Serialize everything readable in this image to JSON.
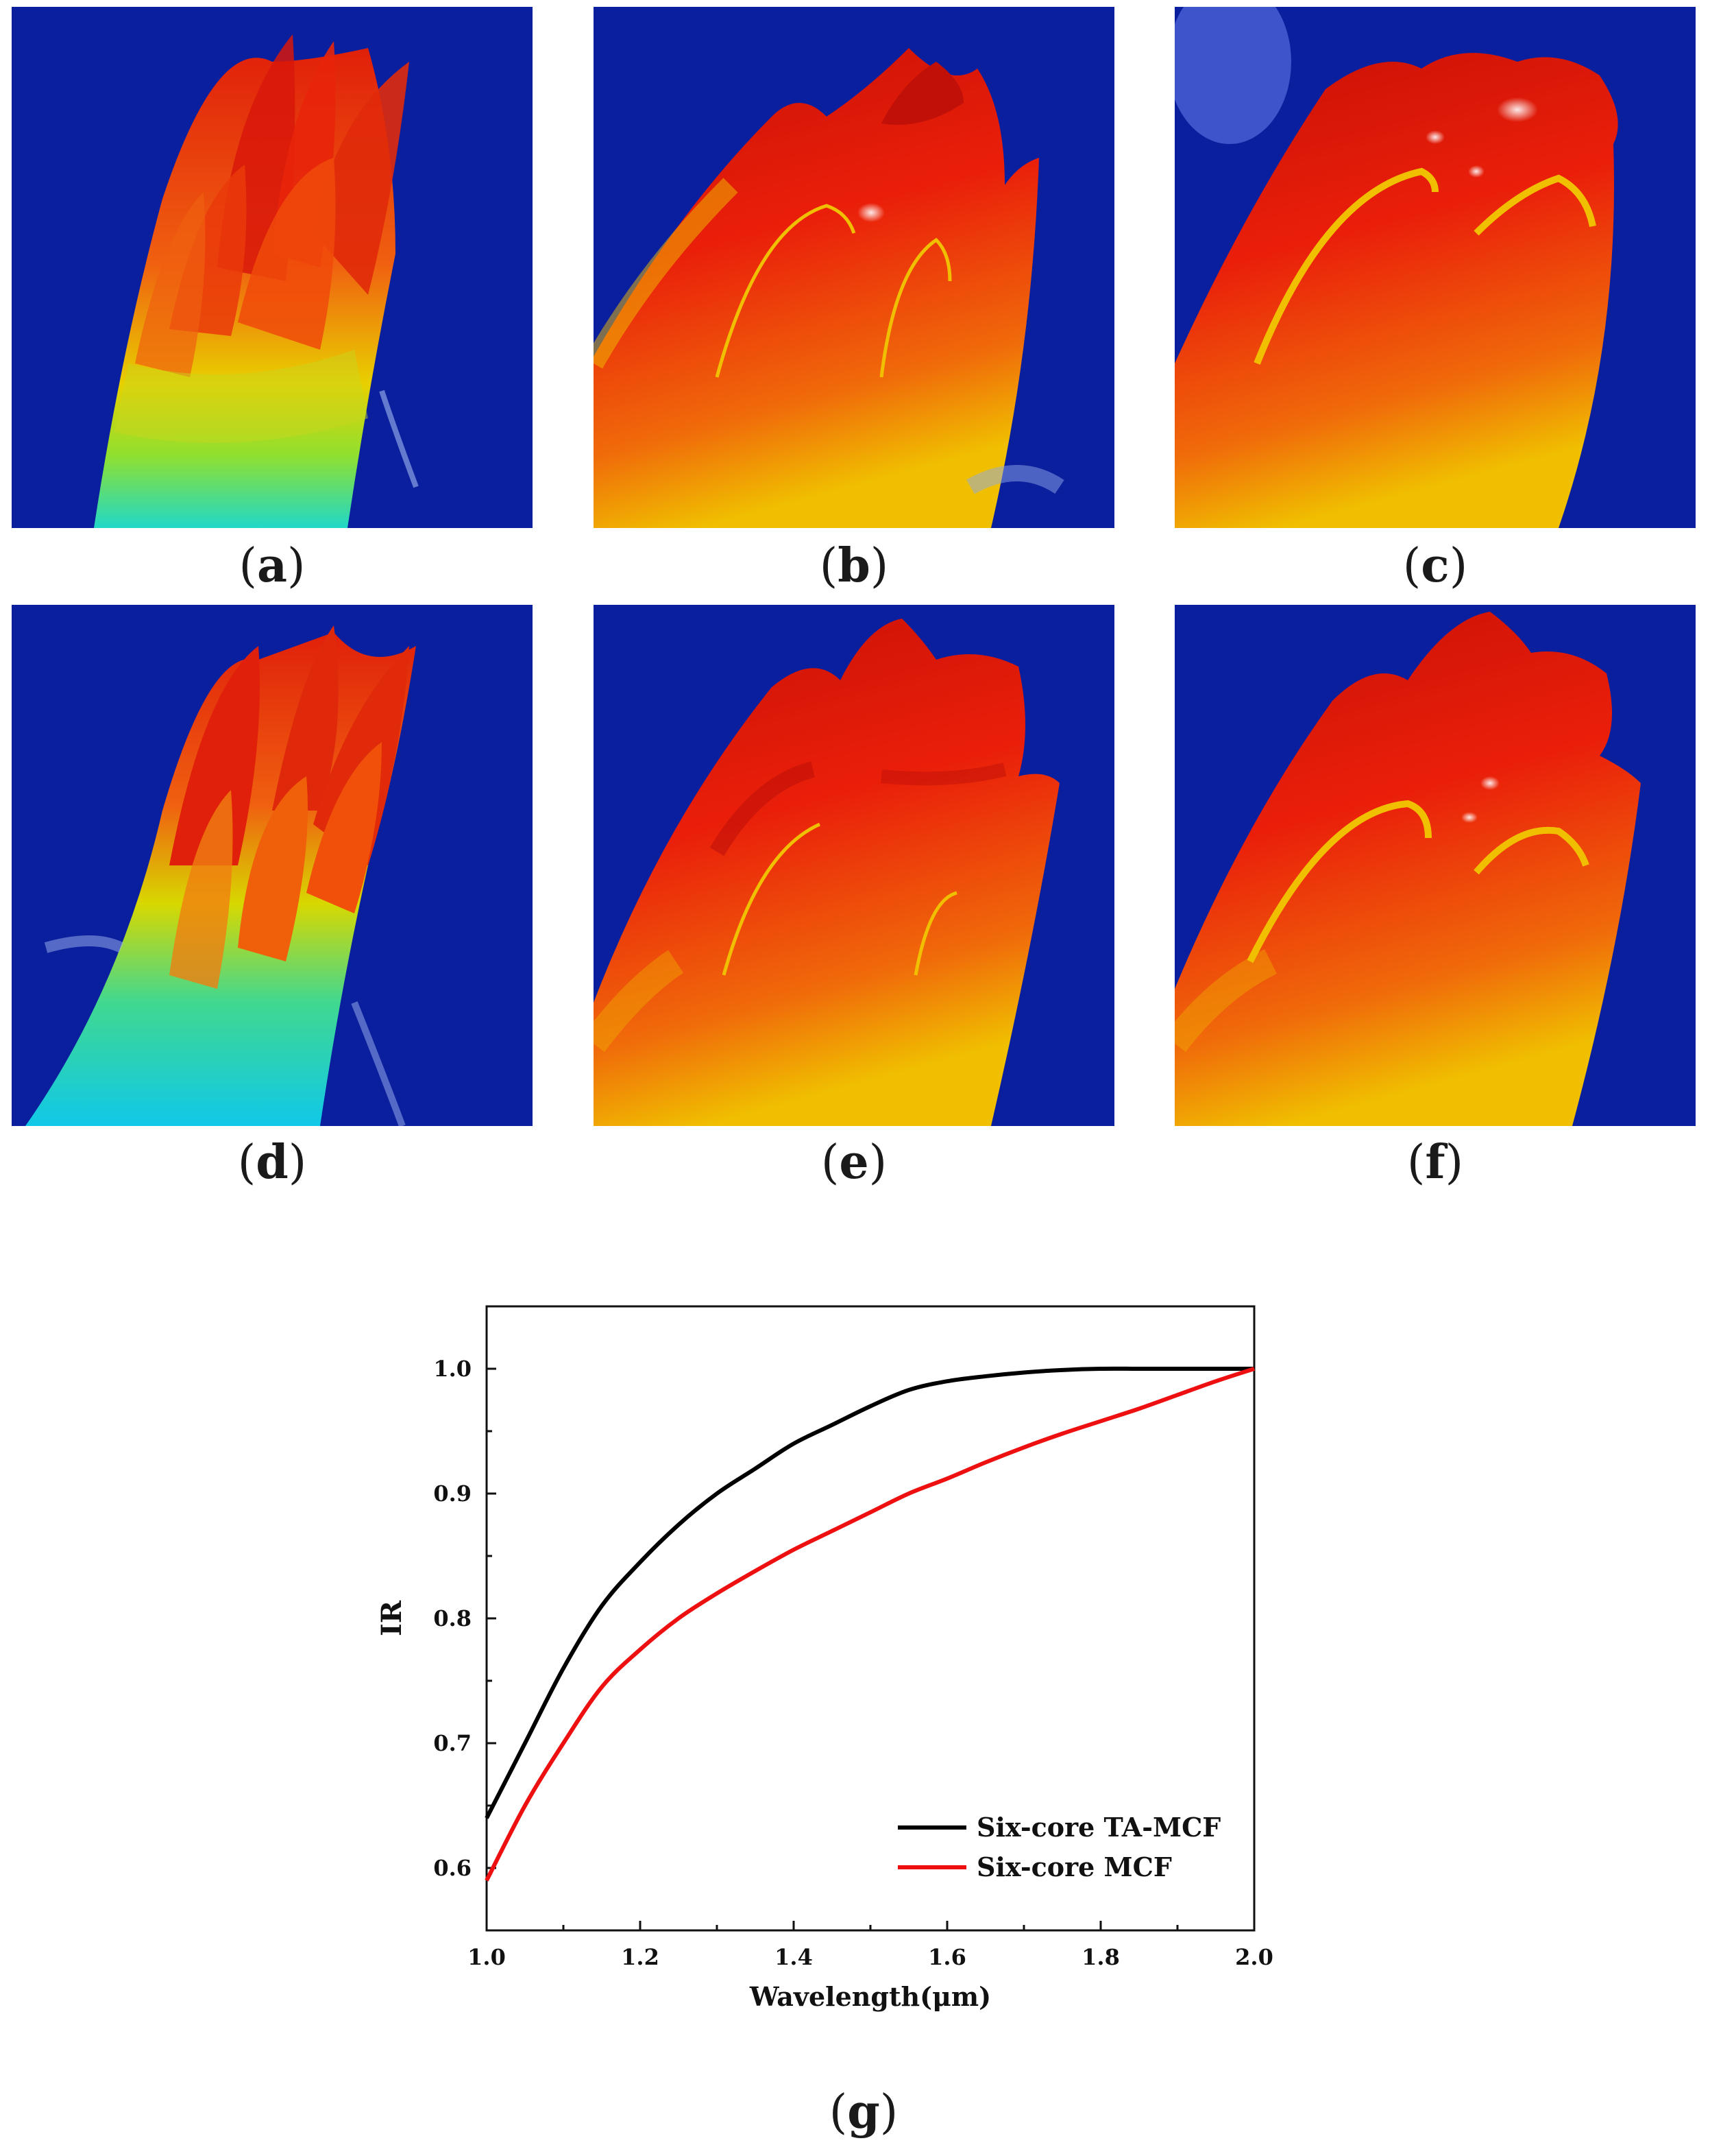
{
  "panels": [
    {
      "id": "a",
      "caption": "a"
    },
    {
      "id": "b",
      "caption": "b"
    },
    {
      "id": "c",
      "caption": "c"
    },
    {
      "id": "d",
      "caption": "d"
    },
    {
      "id": "e",
      "caption": "e"
    },
    {
      "id": "f",
      "caption": "f"
    }
  ],
  "chart_caption": "g",
  "colors": {
    "background_field": "#0a1f9e",
    "mode_red": "#e01a0a",
    "mode_yellow": "#f5d200",
    "mode_cyan": "#18d7d0",
    "series_black": "#000000",
    "series_red": "#ee1010"
  },
  "chart_data": {
    "type": "line",
    "title": "",
    "xlabel": "Wavelength(μm)",
    "ylabel": "IR",
    "xlim": [
      1.0,
      2.0
    ],
    "ylim": [
      0.55,
      1.05
    ],
    "xticks": [
      "1.0",
      "1.2",
      "1.4",
      "1.6",
      "1.8",
      "2.0"
    ],
    "yticks": [
      "0.6",
      "0.7",
      "0.8",
      "0.9",
      "1.0"
    ],
    "legend_position": "bottom-right",
    "series": [
      {
        "name": "Six-core TA-MCF",
        "color": "#000000",
        "x": [
          1.0,
          1.05,
          1.1,
          1.15,
          1.2,
          1.25,
          1.3,
          1.35,
          1.4,
          1.45,
          1.5,
          1.55,
          1.6,
          1.65,
          1.7,
          1.75,
          1.8,
          1.85,
          1.9,
          1.95,
          2.0
        ],
        "y": [
          0.64,
          0.7,
          0.76,
          0.81,
          0.845,
          0.875,
          0.9,
          0.92,
          0.94,
          0.955,
          0.97,
          0.983,
          0.99,
          0.994,
          0.997,
          0.999,
          1.0,
          1.0,
          1.0,
          1.0,
          1.0
        ]
      },
      {
        "name": "Six-core MCF",
        "color": "#ee1010",
        "x": [
          1.0,
          1.05,
          1.1,
          1.15,
          1.2,
          1.25,
          1.3,
          1.35,
          1.4,
          1.45,
          1.5,
          1.55,
          1.6,
          1.65,
          1.7,
          1.75,
          1.8,
          1.85,
          1.9,
          1.95,
          2.0
        ],
        "y": [
          0.59,
          0.65,
          0.7,
          0.745,
          0.775,
          0.8,
          0.82,
          0.838,
          0.855,
          0.87,
          0.885,
          0.9,
          0.912,
          0.925,
          0.937,
          0.948,
          0.958,
          0.968,
          0.979,
          0.99,
          1.0
        ]
      }
    ]
  }
}
